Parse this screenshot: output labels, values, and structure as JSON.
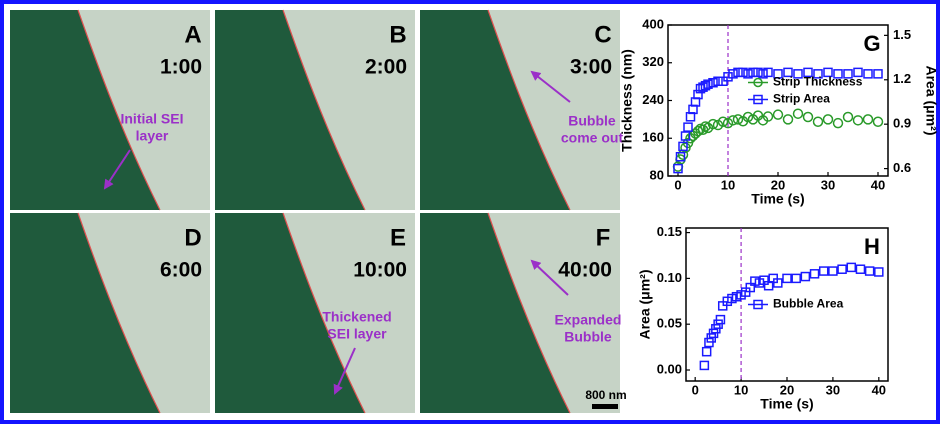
{
  "panels": [
    {
      "letter": "A",
      "time": "1:00",
      "annotation": [
        "Initial SEI",
        "layer"
      ]
    },
    {
      "letter": "B",
      "time": "2:00"
    },
    {
      "letter": "C",
      "time": "3:00",
      "annotation": [
        "Bubble",
        "come out"
      ]
    },
    {
      "letter": "D",
      "time": "6:00"
    },
    {
      "letter": "E",
      "time": "10:00",
      "annotation": [
        "Thickened",
        "SEI layer"
      ]
    },
    {
      "letter": "F",
      "time": "40:00",
      "annotation": [
        "Expanded",
        "Bubble"
      ]
    }
  ],
  "scale_bar": "800 nm",
  "chart_data": [
    {
      "type": "scatter",
      "panel": "G",
      "xlabel": "Time (s)",
      "ylabel": "Thickness (nm)",
      "y2label": "Area (μm²)",
      "xlim": [
        -2,
        42
      ],
      "xticks": [
        0,
        10,
        20,
        30,
        40
      ],
      "ylim": [
        80,
        400
      ],
      "yticks": [
        80,
        160,
        240,
        320,
        400
      ],
      "y2lim": [
        0.55,
        1.57
      ],
      "y2ticks": [
        0.6,
        0.9,
        1.2,
        1.5
      ],
      "vline": 10,
      "legend": "center right",
      "x": [
        0,
        0.5,
        1,
        1.5,
        2,
        2.5,
        3,
        3.5,
        4,
        4.5,
        5,
        5.5,
        6,
        7,
        8,
        9,
        10,
        11,
        12,
        13,
        14,
        15,
        16,
        17,
        18,
        20,
        22,
        24,
        26,
        28,
        30,
        32,
        34,
        36,
        38,
        40
      ],
      "series": [
        {
          "name": "Strip Thickness",
          "color": "#2a9a2a",
          "marker": "circle",
          "values": [
            100,
            115,
            125,
            140,
            150,
            160,
            165,
            170,
            175,
            180,
            178,
            185,
            182,
            190,
            188,
            195,
            192,
            198,
            200,
            196,
            205,
            200,
            208,
            198,
            206,
            210,
            200,
            212,
            205,
            195,
            200,
            192,
            205,
            198,
            200,
            195
          ]
        },
        {
          "name": "Strip Area",
          "color": "#1a1aff",
          "marker": "square",
          "axis": "y2",
          "values": [
            0.6,
            0.68,
            0.75,
            0.82,
            0.88,
            0.95,
            1.0,
            1.05,
            1.1,
            1.14,
            1.15,
            1.16,
            1.17,
            1.18,
            1.19,
            1.19,
            1.22,
            1.24,
            1.25,
            1.25,
            1.24,
            1.25,
            1.25,
            1.24,
            1.25,
            1.24,
            1.25,
            1.24,
            1.25,
            1.24,
            1.25,
            1.24,
            1.24,
            1.25,
            1.24,
            1.24
          ]
        }
      ]
    },
    {
      "type": "scatter",
      "panel": "H",
      "xlabel": "Time (s)",
      "ylabel": "Area (μm²)",
      "xlim": [
        -2,
        42
      ],
      "xticks": [
        0,
        10,
        20,
        30,
        40
      ],
      "ylim": [
        -0.012,
        0.155
      ],
      "yticks": [
        {
          "value": 0,
          "label": "0.00"
        },
        0.05,
        {
          "value": 0.1,
          "label": "0.10"
        },
        0.15
      ],
      "vline": 10,
      "legend": "center right",
      "x": [
        2,
        2.5,
        3,
        3.5,
        4,
        4.5,
        5,
        5.5,
        6,
        7,
        8,
        9,
        10,
        11,
        12,
        13,
        14,
        15,
        16,
        17,
        18,
        20,
        22,
        24,
        26,
        28,
        30,
        32,
        34,
        36,
        38,
        40
      ],
      "series": [
        {
          "name": "Bubble Area",
          "color": "#1a1aff",
          "marker": "square",
          "values": [
            0.005,
            0.02,
            0.03,
            0.035,
            0.04,
            0.045,
            0.05,
            0.055,
            0.07,
            0.075,
            0.078,
            0.08,
            0.082,
            0.085,
            0.09,
            0.097,
            0.095,
            0.098,
            0.092,
            0.1,
            0.095,
            0.1,
            0.1,
            0.102,
            0.105,
            0.108,
            0.108,
            0.11,
            0.112,
            0.11,
            0.108,
            0.107
          ]
        }
      ]
    }
  ]
}
